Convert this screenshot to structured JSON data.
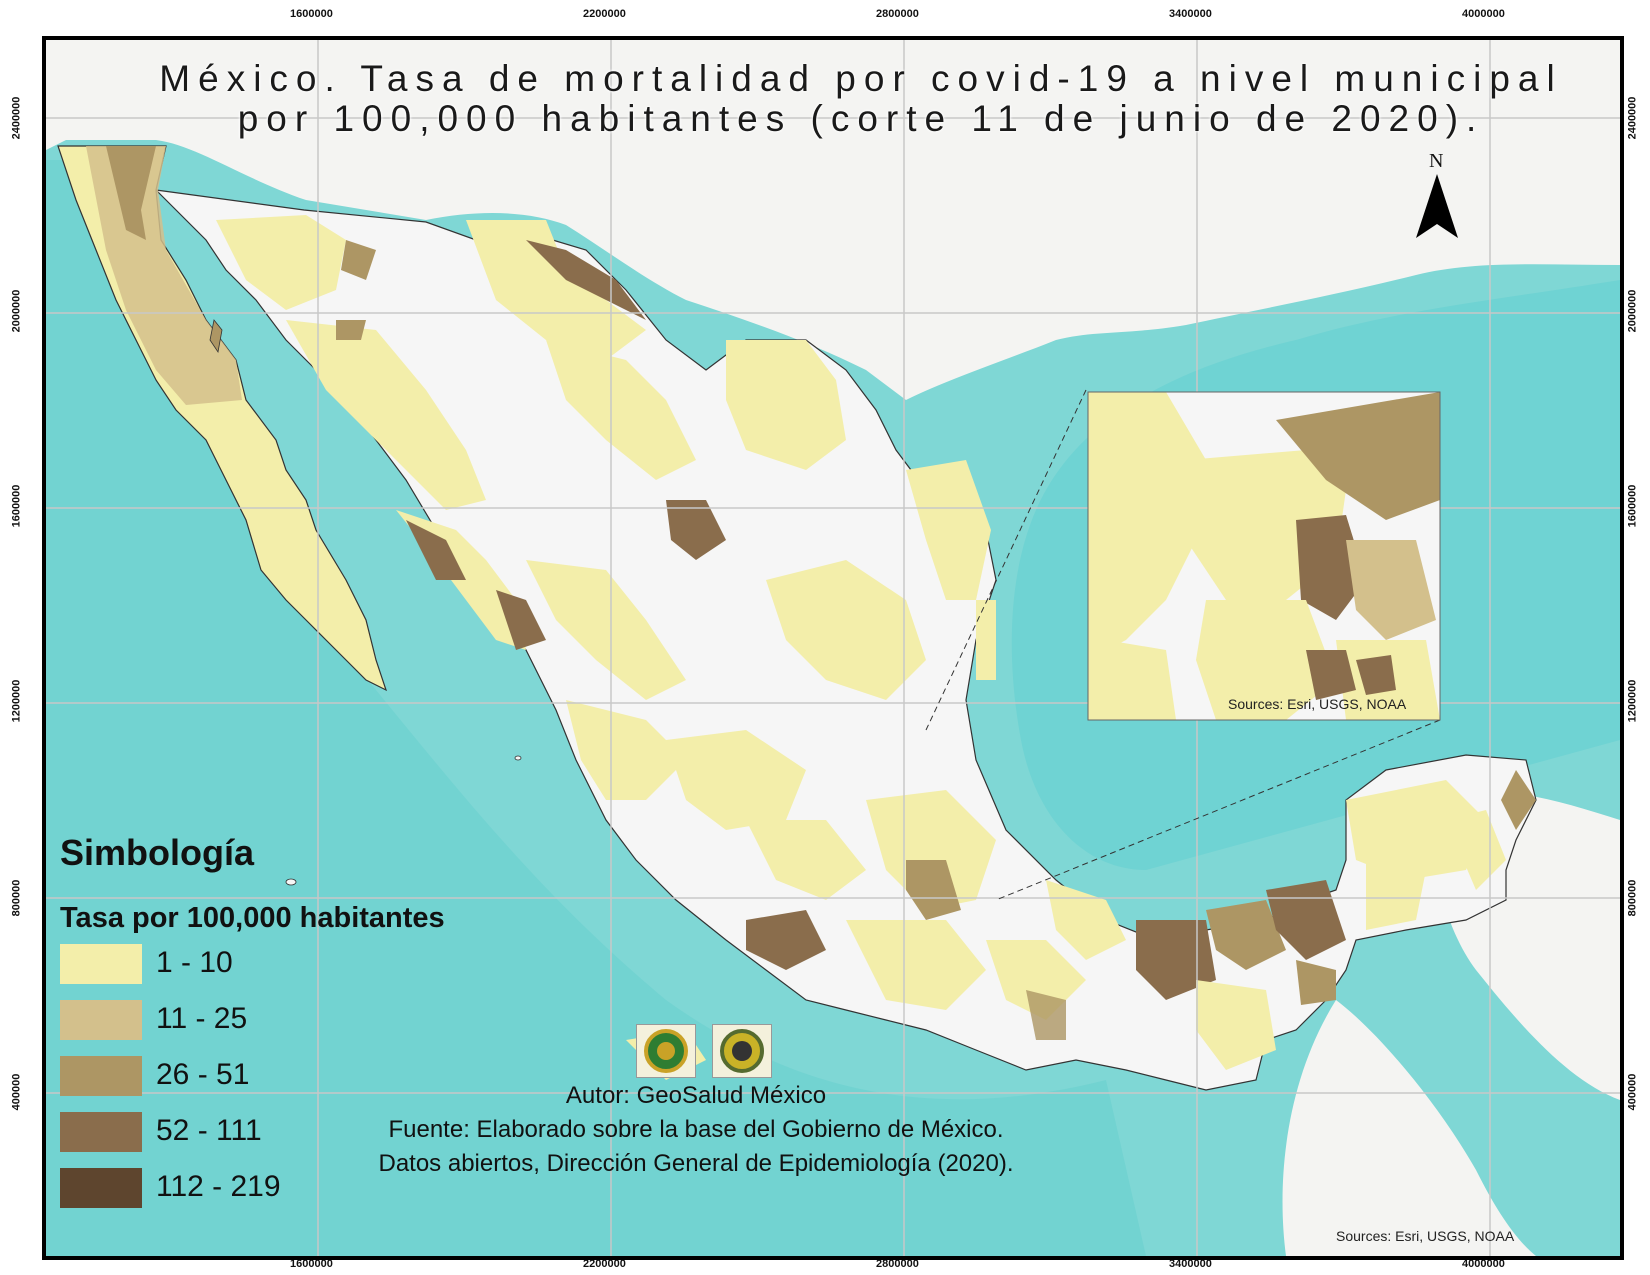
{
  "title": {
    "line1": "México. Tasa de mortalidad por covid-19 a nivel municipal",
    "line2": "por 100,000 habitantes (corte 11 de junio de 2020)."
  },
  "north_label": "N",
  "grid": {
    "x_labels": [
      "1600000",
      "2200000",
      "2800000",
      "3400000",
      "4000000"
    ],
    "y_labels": [
      "2400000",
      "2000000",
      "1600000",
      "1200000",
      "800000",
      "400000"
    ]
  },
  "legend": {
    "title": "Simbología",
    "subtitle": "Tasa por 100,000 habitantes",
    "classes": [
      {
        "label": "1 - 10",
        "color": "#f3eeaa"
      },
      {
        "label": "11 - 25",
        "color": "#d3c08c"
      },
      {
        "label": "26 - 51",
        "color": "#ad9664"
      },
      {
        "label": "52 - 111",
        "color": "#8a6d4c"
      },
      {
        "label": "112 - 219",
        "color": "#5e452e"
      }
    ]
  },
  "credits": {
    "author": "Autor: GeoSalud México",
    "source1": "Fuente:  Elaborado sobre la base del Gobierno de México.",
    "source2": "Datos abiertos, Dirección General de Epidemiología (2020)."
  },
  "sources_main": "Sources: Esri, USGS, NOAA",
  "sources_inset": "Sources: Esri, USGS, NOAA",
  "colors": {
    "ocean": "#6fd3d3",
    "shelf": "#a9e3e0",
    "land_other": "#f4f4f2",
    "mexico_base": "#f6f6f6"
  }
}
